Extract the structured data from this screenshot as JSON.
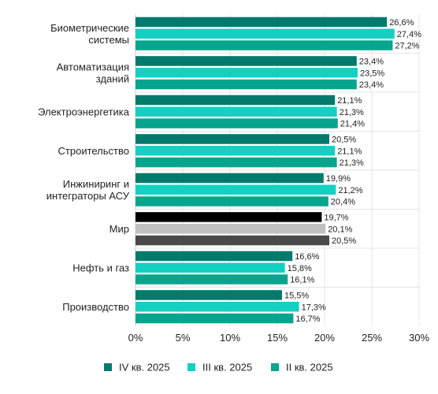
{
  "chart_data": {
    "type": "bar",
    "orientation": "horizontal",
    "categories": [
      [
        "Биометрические",
        "системы"
      ],
      [
        "Автоматизация",
        "зданий"
      ],
      [
        "Электроэнергетика"
      ],
      [
        "Строительство"
      ],
      [
        "Инжиниринг и",
        "интеграторы АСУ"
      ],
      [
        "Мир"
      ],
      [
        "Нефть и газ"
      ],
      [
        "Производство"
      ]
    ],
    "series": [
      {
        "name": "IV кв. 2025",
        "color": "#007a6c",
        "values": [
          26.6,
          23.4,
          21.1,
          20.5,
          19.9,
          19.7,
          16.6,
          15.5
        ]
      },
      {
        "name": "III кв. 2025",
        "color": "#14d0c2",
        "values": [
          27.4,
          23.5,
          21.3,
          21.1,
          21.2,
          20.1,
          15.8,
          17.3
        ]
      },
      {
        "name": "II кв. 2025",
        "color": "#07a58e",
        "values": [
          27.2,
          23.4,
          21.4,
          21.3,
          20.4,
          20.5,
          16.1,
          16.7
        ]
      }
    ],
    "highlight": {
      "category_index": 5,
      "colors": [
        "#000000",
        "#c0c0c0",
        "#4a4a4a"
      ]
    },
    "data_labels": [
      [
        "26,6%",
        "23,4%",
        "21,1%",
        "20,5%",
        "19,9%",
        "19,7%",
        "16,6%",
        "15,5%"
      ],
      [
        "27,4%",
        "23,5%",
        "21,3%",
        "21,1%",
        "21,2%",
        "20,1%",
        "15,8%",
        "17,3%"
      ],
      [
        "27,2%",
        "23,4%",
        "21,4%",
        "21,3%",
        "20,4%",
        "20,5%",
        "16,1%",
        "16,7%"
      ]
    ],
    "xlim": [
      0,
      30
    ],
    "x_ticks": [
      0,
      5,
      10,
      15,
      20,
      25,
      30
    ],
    "x_tick_labels": [
      "0%",
      "5%",
      "10%",
      "15%",
      "20%",
      "25%",
      "30%"
    ],
    "grid": true,
    "legend_position": "bottom",
    "title": "",
    "xlabel": "",
    "ylabel": ""
  }
}
